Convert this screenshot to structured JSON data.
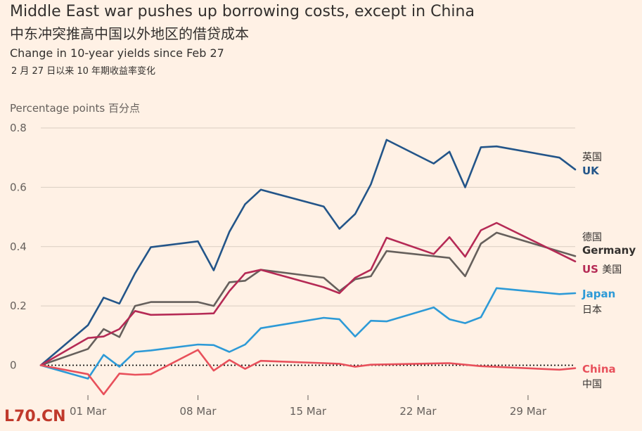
{
  "header": {
    "title": "Middle East war pushes up borrowing costs, except in China",
    "title_cn": "中东冲突推高中国以外地区的借贷成本",
    "subtitle": "Change in 10-year yields since Feb 27",
    "subtitle_cn": "2 月 27 日以来 10 年期收益率变化",
    "unit": "Percentage points 百分点"
  },
  "watermark": "L70.CN",
  "chart_data": {
    "type": "line",
    "ylabel": "Percentage points 百分点",
    "ylim": [
      -0.12,
      0.8
    ],
    "yticks": [
      0,
      0.2,
      0.4,
      0.6,
      0.8
    ],
    "ytick_labels": [
      "0",
      "0.2",
      "0.4",
      "0.6",
      "0.8"
    ],
    "xlim": [
      0,
      34
    ],
    "xticks": [
      3,
      10,
      17,
      24,
      31
    ],
    "xtick_labels": [
      "01 Mar",
      "08 Mar",
      "15 Mar",
      "22 Mar",
      "29 Mar"
    ],
    "zero_line": "dotted",
    "grid": "horizontal",
    "series": [
      {
        "name": "UK",
        "name_cn": "英国",
        "color": "#235589",
        "points": [
          [
            0,
            0
          ],
          [
            3,
            0.135
          ],
          [
            4,
            0.228
          ],
          [
            5,
            0.208
          ],
          [
            6,
            0.31
          ],
          [
            7,
            0.398
          ],
          [
            10,
            0.418
          ],
          [
            11,
            0.32
          ],
          [
            12,
            0.45
          ],
          [
            13,
            0.543
          ],
          [
            14,
            0.592
          ],
          [
            18,
            0.535
          ],
          [
            19,
            0.46
          ],
          [
            20,
            0.51
          ],
          [
            21,
            0.61
          ],
          [
            22,
            0.76
          ],
          [
            25,
            0.68
          ],
          [
            26,
            0.72
          ],
          [
            27,
            0.6
          ],
          [
            28,
            0.735
          ],
          [
            29,
            0.738
          ],
          [
            33,
            0.7
          ],
          [
            34,
            0.66
          ]
        ]
      },
      {
        "name": "Germany",
        "name_cn": "德国",
        "color": "#66605c",
        "points": [
          [
            0,
            0
          ],
          [
            3,
            0.055
          ],
          [
            4,
            0.122
          ],
          [
            5,
            0.095
          ],
          [
            6,
            0.2
          ],
          [
            7,
            0.213
          ],
          [
            10,
            0.213
          ],
          [
            11,
            0.2
          ],
          [
            12,
            0.28
          ],
          [
            13,
            0.285
          ],
          [
            14,
            0.322
          ],
          [
            18,
            0.295
          ],
          [
            19,
            0.25
          ],
          [
            20,
            0.29
          ],
          [
            21,
            0.3
          ],
          [
            22,
            0.385
          ],
          [
            26,
            0.362
          ],
          [
            27,
            0.3
          ],
          [
            28,
            0.41
          ],
          [
            29,
            0.447
          ],
          [
            34,
            0.368
          ]
        ]
      },
      {
        "name": "US",
        "name_cn": "美国",
        "color": "#b52a55",
        "points": [
          [
            0,
            0
          ],
          [
            3,
            0.092
          ],
          [
            4,
            0.097
          ],
          [
            5,
            0.122
          ],
          [
            6,
            0.183
          ],
          [
            7,
            0.17
          ],
          [
            10,
            0.173
          ],
          [
            11,
            0.175
          ],
          [
            12,
            0.25
          ],
          [
            13,
            0.31
          ],
          [
            14,
            0.322
          ],
          [
            18,
            0.263
          ],
          [
            19,
            0.243
          ],
          [
            20,
            0.295
          ],
          [
            21,
            0.322
          ],
          [
            22,
            0.43
          ],
          [
            25,
            0.375
          ],
          [
            26,
            0.432
          ],
          [
            27,
            0.366
          ],
          [
            28,
            0.455
          ],
          [
            29,
            0.48
          ],
          [
            34,
            0.35
          ]
        ]
      },
      {
        "name": "Japan",
        "name_cn": "日本",
        "color": "#2d9ad7",
        "points": [
          [
            0,
            0
          ],
          [
            3,
            -0.045
          ],
          [
            4,
            0.035
          ],
          [
            5,
            -0.005
          ],
          [
            6,
            0.045
          ],
          [
            7,
            0.05
          ],
          [
            10,
            0.07
          ],
          [
            11,
            0.068
          ],
          [
            12,
            0.045
          ],
          [
            13,
            0.07
          ],
          [
            14,
            0.125
          ],
          [
            18,
            0.16
          ],
          [
            19,
            0.155
          ],
          [
            20,
            0.097
          ],
          [
            21,
            0.15
          ],
          [
            22,
            0.148
          ],
          [
            25,
            0.195
          ],
          [
            26,
            0.155
          ],
          [
            27,
            0.142
          ],
          [
            28,
            0.162
          ],
          [
            29,
            0.26
          ],
          [
            33,
            0.24
          ],
          [
            34,
            0.243
          ]
        ]
      },
      {
        "name": "China",
        "name_cn": "中国",
        "color": "#e8505b",
        "points": [
          [
            0,
            0
          ],
          [
            3,
            -0.03
          ],
          [
            4,
            -0.098
          ],
          [
            5,
            -0.028
          ],
          [
            6,
            -0.032
          ],
          [
            7,
            -0.03
          ],
          [
            10,
            0.052
          ],
          [
            11,
            -0.018
          ],
          [
            12,
            0.018
          ],
          [
            13,
            -0.012
          ],
          [
            14,
            0.015
          ],
          [
            18,
            0.007
          ],
          [
            19,
            0.005
          ],
          [
            20,
            -0.005
          ],
          [
            21,
            0.002
          ],
          [
            26,
            0.007
          ],
          [
            27,
            0.002
          ],
          [
            28,
            -0.003
          ],
          [
            33,
            -0.015
          ],
          [
            34,
            -0.01
          ]
        ]
      }
    ]
  }
}
